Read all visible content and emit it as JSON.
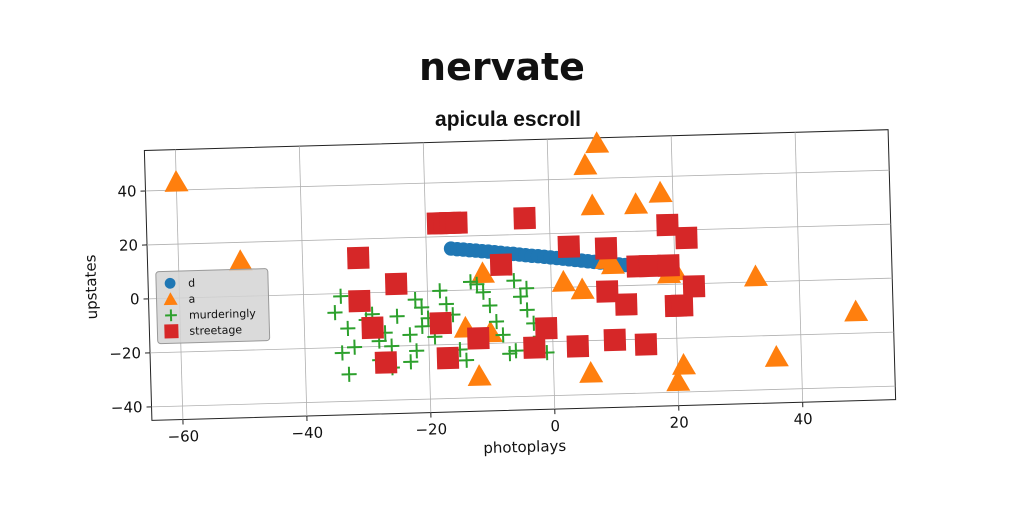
{
  "chart_data": {
    "type": "scatter",
    "title": "nervate",
    "subtitle": "apicula escroll",
    "xlabel": "photoplays",
    "ylabel": "upstates",
    "xlim": [
      -65,
      55
    ],
    "ylim": [
      -45,
      55
    ],
    "xticks": [
      -60,
      -40,
      -20,
      0,
      20,
      40
    ],
    "yticks": [
      -40,
      -20,
      0,
      20,
      40
    ],
    "grid": true,
    "legend_position": "center-left",
    "series": [
      {
        "name": "d",
        "marker": "circle",
        "color": "#1f77b4",
        "points": [
          [
            -16,
            15.5
          ],
          [
            -15,
            15.2
          ],
          [
            -14,
            15.0
          ],
          [
            -13,
            14.7
          ],
          [
            -12,
            14.5
          ],
          [
            -11,
            14.2
          ],
          [
            -10,
            14.0
          ],
          [
            -9,
            13.7
          ],
          [
            -8,
            13.4
          ],
          [
            -7,
            13.1
          ],
          [
            -6,
            12.9
          ],
          [
            -5,
            12.6
          ],
          [
            -4,
            12.3
          ],
          [
            -3,
            12.0
          ],
          [
            -2,
            11.8
          ],
          [
            -1,
            11.5
          ],
          [
            0,
            11.2
          ],
          [
            1,
            10.9
          ],
          [
            2,
            10.6
          ],
          [
            3,
            10.3
          ],
          [
            4,
            10.0
          ],
          [
            5,
            9.7
          ],
          [
            6,
            9.4
          ],
          [
            7,
            9.1
          ],
          [
            8,
            8.8
          ],
          [
            9,
            8.5
          ],
          [
            10,
            8.2
          ],
          [
            11,
            7.9
          ],
          [
            12,
            7.6
          ],
          [
            13,
            7.3
          ],
          [
            14,
            7.0
          ]
        ]
      },
      {
        "name": "a",
        "marker": "triangle",
        "color": "#ff7f0e",
        "points": [
          [
            -60,
            43
          ],
          [
            -50,
            13
          ],
          [
            8,
            53
          ],
          [
            6,
            45
          ],
          [
            7,
            30
          ],
          [
            14,
            30
          ],
          [
            18,
            34
          ],
          [
            9,
            10
          ],
          [
            10,
            8
          ],
          [
            20,
            5
          ],
          [
            19,
            4
          ],
          [
            2,
            2
          ],
          [
            5,
            -1
          ],
          [
            33,
            2
          ],
          [
            49,
            -12
          ],
          [
            36,
            -28
          ],
          [
            21,
            -30
          ],
          [
            20,
            -36
          ],
          [
            6,
            -32
          ],
          [
            -12,
            -32
          ],
          [
            -14,
            -14
          ],
          [
            -10,
            -16
          ],
          [
            -11,
            6
          ]
        ]
      },
      {
        "name": "murderingly",
        "marker": "plus",
        "color": "#2ca02c",
        "points": [
          [
            -34,
            -1
          ],
          [
            -35,
            -7
          ],
          [
            -33,
            -13
          ],
          [
            -32,
            -20
          ],
          [
            -34,
            -22
          ],
          [
            -33,
            -30
          ],
          [
            -31,
            -3
          ],
          [
            -29,
            -8
          ],
          [
            -27,
            -15
          ],
          [
            -26,
            -20
          ],
          [
            -28,
            -25
          ],
          [
            -25,
            -9
          ],
          [
            -23,
            -16
          ],
          [
            -22,
            -22
          ],
          [
            -23,
            -26
          ],
          [
            -22,
            -3
          ],
          [
            -21,
            -6
          ],
          [
            -20,
            -10
          ],
          [
            -21,
            -13
          ],
          [
            -19,
            -17
          ],
          [
            -18,
            0
          ],
          [
            -17,
            -5
          ],
          [
            -16,
            -9
          ],
          [
            -15,
            -22
          ],
          [
            -14,
            -26
          ],
          [
            -13,
            3
          ],
          [
            -12,
            2
          ],
          [
            -11,
            -1
          ],
          [
            -10,
            -6
          ],
          [
            -9,
            -12
          ],
          [
            -8,
            -17
          ],
          [
            -7,
            -24
          ],
          [
            -6,
            3
          ],
          [
            -5,
            -3
          ],
          [
            -4,
            -8
          ],
          [
            -3,
            -13
          ],
          [
            -2,
            -18
          ],
          [
            -1,
            -24
          ],
          [
            -4,
            0
          ],
          [
            -6,
            -23
          ],
          [
            -28,
            -18
          ],
          [
            -26,
            -28
          ],
          [
            -30,
            -10
          ]
        ]
      },
      {
        "name": "streetage",
        "marker": "square",
        "color": "#d62728",
        "points": [
          [
            -31,
            13
          ],
          [
            -31,
            -3
          ],
          [
            -29,
            -13
          ],
          [
            -27,
            -26
          ],
          [
            -25,
            3
          ],
          [
            -18,
            25
          ],
          [
            -17,
            25
          ],
          [
            -16,
            25
          ],
          [
            -15,
            25
          ],
          [
            -18,
            -12
          ],
          [
            -17,
            -25
          ],
          [
            -12,
            -18
          ],
          [
            -8,
            9
          ],
          [
            -4,
            26
          ],
          [
            -3,
            -22
          ],
          [
            -1,
            -15
          ],
          [
            3,
            15
          ],
          [
            4,
            -22
          ],
          [
            9,
            14
          ],
          [
            9,
            -2
          ],
          [
            10,
            -20
          ],
          [
            12,
            -7
          ],
          [
            14,
            7
          ],
          [
            15,
            -22
          ],
          [
            16,
            7
          ],
          [
            19,
            22
          ],
          [
            19,
            7
          ],
          [
            20,
            -8
          ],
          [
            21,
            -8
          ],
          [
            22,
            17
          ],
          [
            23,
            -1
          ]
        ]
      }
    ]
  }
}
